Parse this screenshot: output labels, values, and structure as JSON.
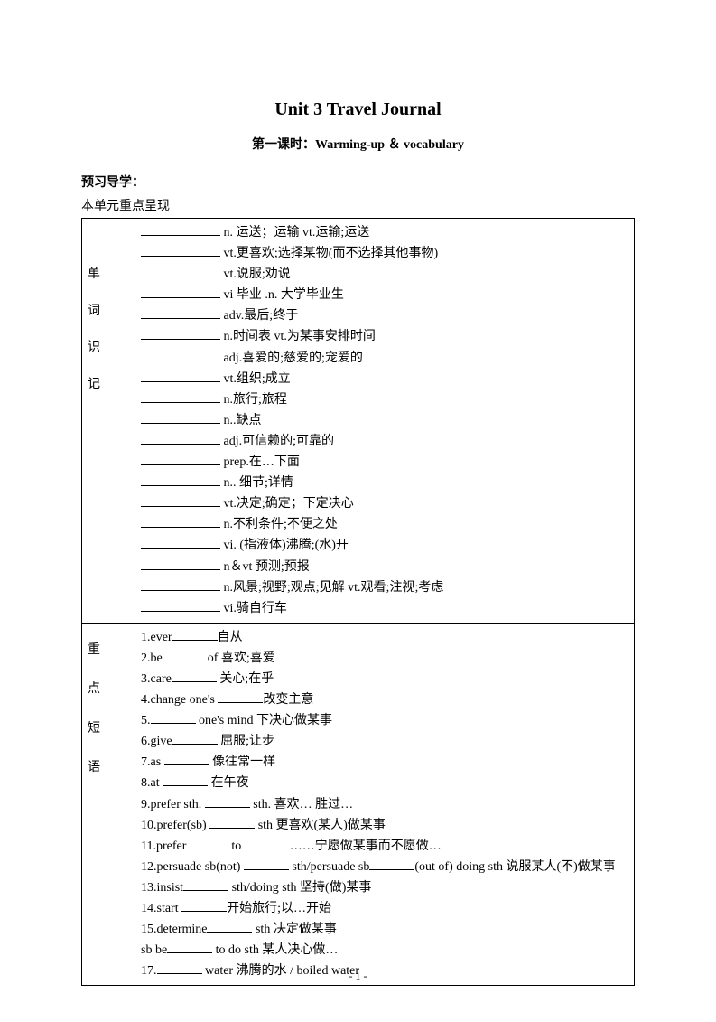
{
  "title": "Unit 3    Travel Journal",
  "subtitle_cn": "第一课时：",
  "subtitle_en": "Warming-up  ＆  vocabulary",
  "section_head": "预习导学：",
  "intro": "本单元重点呈现",
  "row_labels": {
    "vocab": [
      "单",
      "词",
      "识",
      "记"
    ],
    "phrases": [
      "重",
      "点",
      "短",
      "语"
    ]
  },
  "vocab": [
    {
      "def": "n.  运送；运输  vt.运输;运送"
    },
    {
      "def": "vt.更喜欢;选择某物(而不选择其他事物)"
    },
    {
      "def": "vt.说服;劝说"
    },
    {
      "def": "vi     毕业    .n.  大学毕业生"
    },
    {
      "def": "adv.最后;终于"
    },
    {
      "def": "n.时间表        vt.为某事安排时间"
    },
    {
      "def": "adj.喜爱的;慈爱的;宠爱的"
    },
    {
      "def": "vt.组织;成立"
    },
    {
      "def": "n.旅行;旅程"
    },
    {
      "def": "n..缺点"
    },
    {
      "def": "adj.可信赖的;可靠的"
    },
    {
      "def": "prep.在…下面"
    },
    {
      "def": "n..  细节;详情"
    },
    {
      "def": "vt.决定;确定；下定决心"
    },
    {
      "def": "n.不利条件;不便之处"
    },
    {
      "def": "vi. (指液体)沸腾;(水)开"
    },
    {
      "def": "n＆vt 预测;预报"
    },
    {
      "def": "n.风景;视野;观点;见解    vt.观看;注视;考虑"
    },
    {
      "def": "vi.骑自行车"
    }
  ],
  "phrases": [
    {
      "pre": "1.ever",
      "post": "自从"
    },
    {
      "pre": "2.be",
      "mid": "of   喜欢;喜爱"
    },
    {
      "pre": "3.care",
      "post": "  关心;在乎"
    },
    {
      "pre": "4.change one's ",
      "post": "改变主意"
    },
    {
      "pre": "5.",
      "post": " one's mind      下决心做某事"
    },
    {
      "pre": "6.give",
      "post": "   屈服;让步"
    },
    {
      "pre": "7.as ",
      "post": "   像往常一样"
    },
    {
      "pre": "8.at ",
      "post": "   在午夜"
    },
    {
      "pre": "9.prefer sth. ",
      "post": " sth.  喜欢…  胜过…"
    },
    {
      "pre": "10.prefer(sb) ",
      "post": " sth  更喜欢(某人)做某事"
    },
    {
      "pre": "11.prefer",
      "mid1": "to ",
      "post": "……宁愿做某事而不愿做…"
    },
    {
      "pre": "12.persuade sb(not) ",
      "mid1": " sth/persuade sb",
      "post": "(out of) doing sth 说服某人(不)做某事"
    },
    {
      "pre": "13.insist",
      "post": " sth/doing sth  坚持(做)某事"
    },
    {
      "pre": "14.start ",
      "post": "开始旅行;以…开始"
    },
    {
      "pre": "15.determine",
      "post": " sth 决定做某事"
    },
    {
      "pre": "sb be",
      "post": " to do sth  某人决心做…"
    },
    {
      "pre": "17.",
      "post": " water 沸腾的水  / boiled water"
    }
  ],
  "page_number": "- 1 -"
}
